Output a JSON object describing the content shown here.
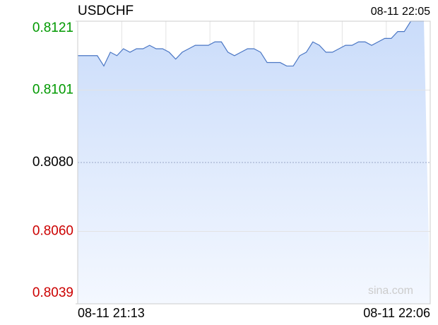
{
  "chart_data": {
    "type": "area",
    "title": "USDCHF",
    "subtitle": "08-11 22:05",
    "watermark": "sina.com",
    "categories": [
      "08-11 21:13",
      null,
      null,
      null,
      null,
      null,
      null,
      null,
      null,
      null,
      null,
      null,
      null,
      null,
      null,
      null,
      null,
      null,
      null,
      null,
      null,
      null,
      null,
      null,
      null,
      null,
      null,
      null,
      null,
      null,
      null,
      null,
      null,
      null,
      null,
      null,
      null,
      null,
      null,
      null,
      null,
      null,
      null,
      null,
      null,
      null,
      null,
      null,
      null,
      null,
      null,
      null,
      null,
      "08-11 22:06"
    ],
    "values": [
      0.8111,
      0.8111,
      0.8111,
      0.8111,
      0.8108,
      0.8112,
      0.8111,
      0.8113,
      0.8112,
      0.8113,
      0.8113,
      0.8114,
      0.8113,
      0.8113,
      0.8112,
      0.811,
      0.8112,
      0.8113,
      0.8114,
      0.8114,
      0.8114,
      0.8115,
      0.8115,
      0.8112,
      0.8111,
      0.8112,
      0.8113,
      0.8113,
      0.8112,
      0.8109,
      0.8109,
      0.8109,
      0.8108,
      0.8108,
      0.8111,
      0.8112,
      0.8115,
      0.8114,
      0.8112,
      0.8112,
      0.8113,
      0.8114,
      0.8114,
      0.8115,
      0.8115,
      0.8114,
      0.8115,
      0.8116,
      0.8116,
      0.8118,
      0.8118,
      0.8121,
      0.8121,
      0.8121
    ],
    "color": "#4a76c4",
    "ylim": [
      0.8039,
      0.8121
    ],
    "yticks": [
      0.8121,
      0.8101,
      {
        "value": 0.808,
        "label": "0.8080"
      },
      {
        "value": 0.806,
        "label": "0.8060"
      },
      0.8039
    ],
    "tick_colors": {
      "up": "#009900",
      "flat": "#000000",
      "down": "#cc0000"
    },
    "grid": true
  }
}
